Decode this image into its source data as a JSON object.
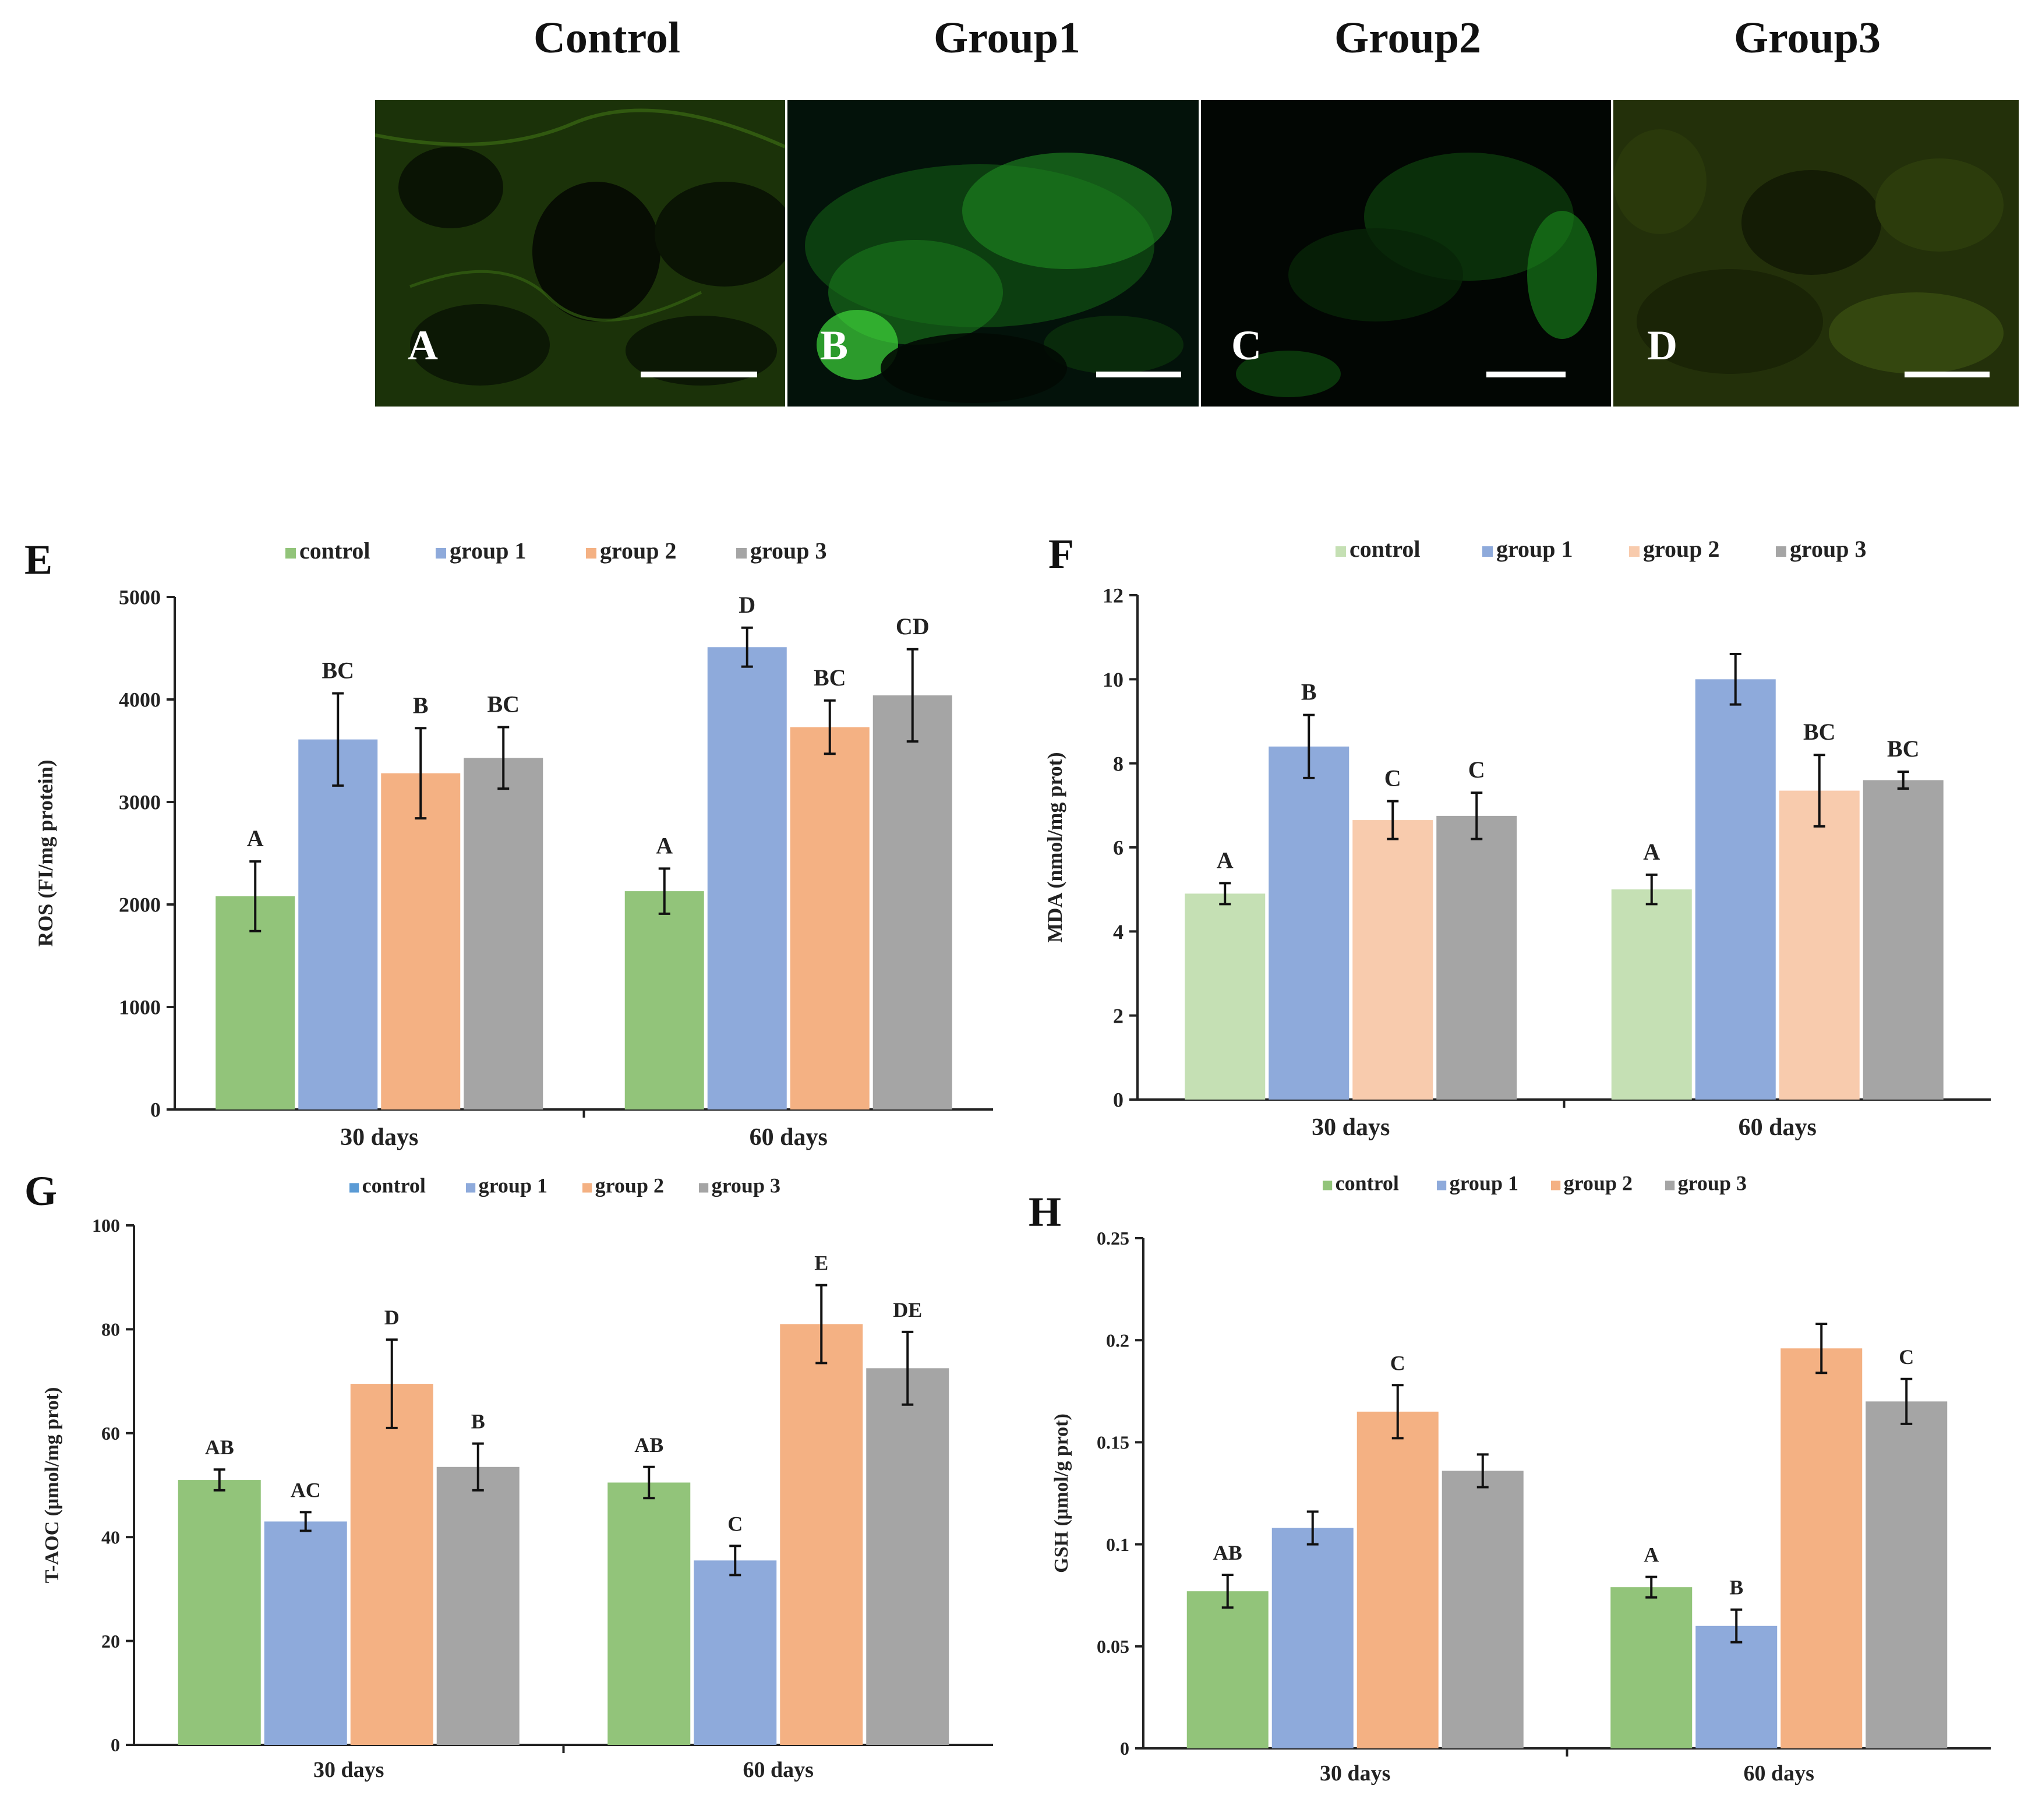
{
  "micrographs": [
    {
      "title": "Control",
      "letter": "A",
      "tint": "#2f6b0c"
    },
    {
      "title": "Group1",
      "letter": "B",
      "tint": "#3fd63a"
    },
    {
      "title": "Group2",
      "letter": "C",
      "tint": "#27b22a"
    },
    {
      "title": "Group3",
      "letter": "D",
      "tint": "#5f7a14"
    }
  ],
  "colors": {
    "control_green": "#92c47a",
    "group1_blue": "#8eaadb",
    "group2_orange": "#f4b183",
    "group3_gray": "#a5a5a5",
    "control_lightgreen": "#c5e0b4",
    "group2_peach": "#f8cbad",
    "control_blue_legend": "#5b9bd5"
  },
  "chart_data": [
    {
      "panel": "E",
      "type": "bar",
      "categories": [
        "30 days",
        "60 days"
      ],
      "ylabel": "ROS (FI/mg protein)",
      "ylim": [
        0,
        5000
      ],
      "yticks": [
        "0",
        "1000",
        "2000",
        "3000",
        "4000",
        "5000"
      ],
      "ytick_values": [
        0,
        1000,
        2000,
        3000,
        4000,
        5000
      ],
      "legend": [
        "control",
        "group 1",
        "group 2",
        "group 3"
      ],
      "legend_colors": [
        "#92c47a",
        "#8eaadb",
        "#f4b183",
        "#a5a5a5"
      ],
      "series": [
        {
          "name": "control",
          "color": "#92c47a",
          "values": [
            2080,
            2130
          ],
          "errors": [
            340,
            220
          ],
          "labels": [
            "A",
            "A"
          ]
        },
        {
          "name": "group 1",
          "color": "#8eaadb",
          "values": [
            3610,
            4510
          ],
          "errors": [
            450,
            190
          ],
          "labels": [
            "BC",
            "D"
          ]
        },
        {
          "name": "group 2",
          "color": "#f4b183",
          "values": [
            3280,
            3730
          ],
          "errors": [
            440,
            260
          ],
          "labels": [
            "B",
            "BC"
          ]
        },
        {
          "name": "group 3",
          "color": "#a5a5a5",
          "values": [
            3430,
            4040
          ],
          "errors": [
            300,
            450
          ],
          "labels": [
            "BC",
            "CD"
          ]
        }
      ]
    },
    {
      "panel": "F",
      "type": "bar",
      "categories": [
        "30 days",
        "60 days"
      ],
      "ylabel": "MDA (nmol/mg prot)",
      "ylim": [
        0,
        12
      ],
      "yticks": [
        "0",
        "2",
        "4",
        "6",
        "8",
        "10",
        "12"
      ],
      "ytick_values": [
        0,
        2,
        4,
        6,
        8,
        10,
        12
      ],
      "legend": [
        "control",
        "group 1",
        "group 2",
        "group 3"
      ],
      "legend_colors": [
        "#c5e0b4",
        "#8eaadb",
        "#f8cbad",
        "#a5a5a5"
      ],
      "series": [
        {
          "name": "control",
          "color": "#c5e0b4",
          "values": [
            4.9,
            5.0
          ],
          "errors": [
            0.25,
            0.35
          ],
          "labels": [
            "A",
            "A"
          ]
        },
        {
          "name": "group 1",
          "color": "#8eaadb",
          "values": [
            8.4,
            10.0
          ],
          "errors": [
            0.75,
            0.6
          ],
          "labels": [
            "B",
            ""
          ]
        },
        {
          "name": "group 2",
          "color": "#f8cbad",
          "values": [
            6.65,
            7.35
          ],
          "errors": [
            0.45,
            0.85
          ],
          "labels": [
            "C",
            "BC"
          ]
        },
        {
          "name": "group 3",
          "color": "#a5a5a5",
          "values": [
            6.75,
            7.6
          ],
          "errors": [
            0.55,
            0.2
          ],
          "labels": [
            "C",
            "BC"
          ]
        }
      ]
    },
    {
      "panel": "G",
      "type": "bar",
      "categories": [
        "30 days",
        "60 days"
      ],
      "ylabel": "T-AOC (μmol/mg prot)",
      "ylim": [
        0,
        100
      ],
      "yticks": [
        "0",
        "20",
        "40",
        "60",
        "80",
        "100"
      ],
      "ytick_values": [
        0,
        20,
        40,
        60,
        80,
        100
      ],
      "legend": [
        "control",
        "group 1",
        "group 2",
        "group 3"
      ],
      "legend_colors": [
        "#5b9bd5",
        "#8eaadb",
        "#f4b183",
        "#a5a5a5"
      ],
      "series": [
        {
          "name": "control",
          "color": "#92c47a",
          "values": [
            51,
            50.5
          ],
          "errors": [
            2,
            3
          ],
          "labels": [
            "AB",
            "AB"
          ]
        },
        {
          "name": "group 1",
          "color": "#8eaadb",
          "values": [
            43,
            35.5
          ],
          "errors": [
            1.8,
            2.8
          ],
          "labels": [
            "AC",
            "C"
          ]
        },
        {
          "name": "group 2",
          "color": "#f4b183",
          "values": [
            69.5,
            81
          ],
          "errors": [
            8.5,
            7.5
          ],
          "labels": [
            "D",
            "E"
          ]
        },
        {
          "name": "group 3",
          "color": "#a5a5a5",
          "values": [
            53.5,
            72.5
          ],
          "errors": [
            4.5,
            7
          ],
          "labels": [
            "B",
            "DE"
          ]
        }
      ]
    },
    {
      "panel": "H",
      "type": "bar",
      "categories": [
        "30 days",
        "60 days"
      ],
      "ylabel": "GSH (μmol/g prot)",
      "ylim": [
        0,
        0.25
      ],
      "yticks": [
        "0",
        "0.05",
        "0.1",
        "0.15",
        "0.2",
        "0.25"
      ],
      "ytick_values": [
        0,
        0.05,
        0.1,
        0.15,
        0.2,
        0.25
      ],
      "legend": [
        "control",
        "group 1",
        "group 2",
        "group 3"
      ],
      "legend_colors": [
        "#92c47a",
        "#8eaadb",
        "#f4b183",
        "#a5a5a5"
      ],
      "series": [
        {
          "name": "control",
          "color": "#92c47a",
          "values": [
            0.077,
            0.079
          ],
          "errors": [
            0.008,
            0.005
          ],
          "labels": [
            "AB",
            "A"
          ]
        },
        {
          "name": "group 1",
          "color": "#8eaadb",
          "values": [
            0.108,
            0.06
          ],
          "errors": [
            0.008,
            0.008
          ],
          "labels": [
            "",
            "B"
          ]
        },
        {
          "name": "group 2",
          "color": "#f4b183",
          "values": [
            0.165,
            0.196
          ],
          "errors": [
            0.013,
            0.012
          ],
          "labels": [
            "C",
            ""
          ]
        },
        {
          "name": "group 3",
          "color": "#a5a5a5",
          "values": [
            0.136,
            0.17
          ],
          "errors": [
            0.008,
            0.011
          ],
          "labels": [
            "",
            "C"
          ]
        }
      ]
    }
  ]
}
